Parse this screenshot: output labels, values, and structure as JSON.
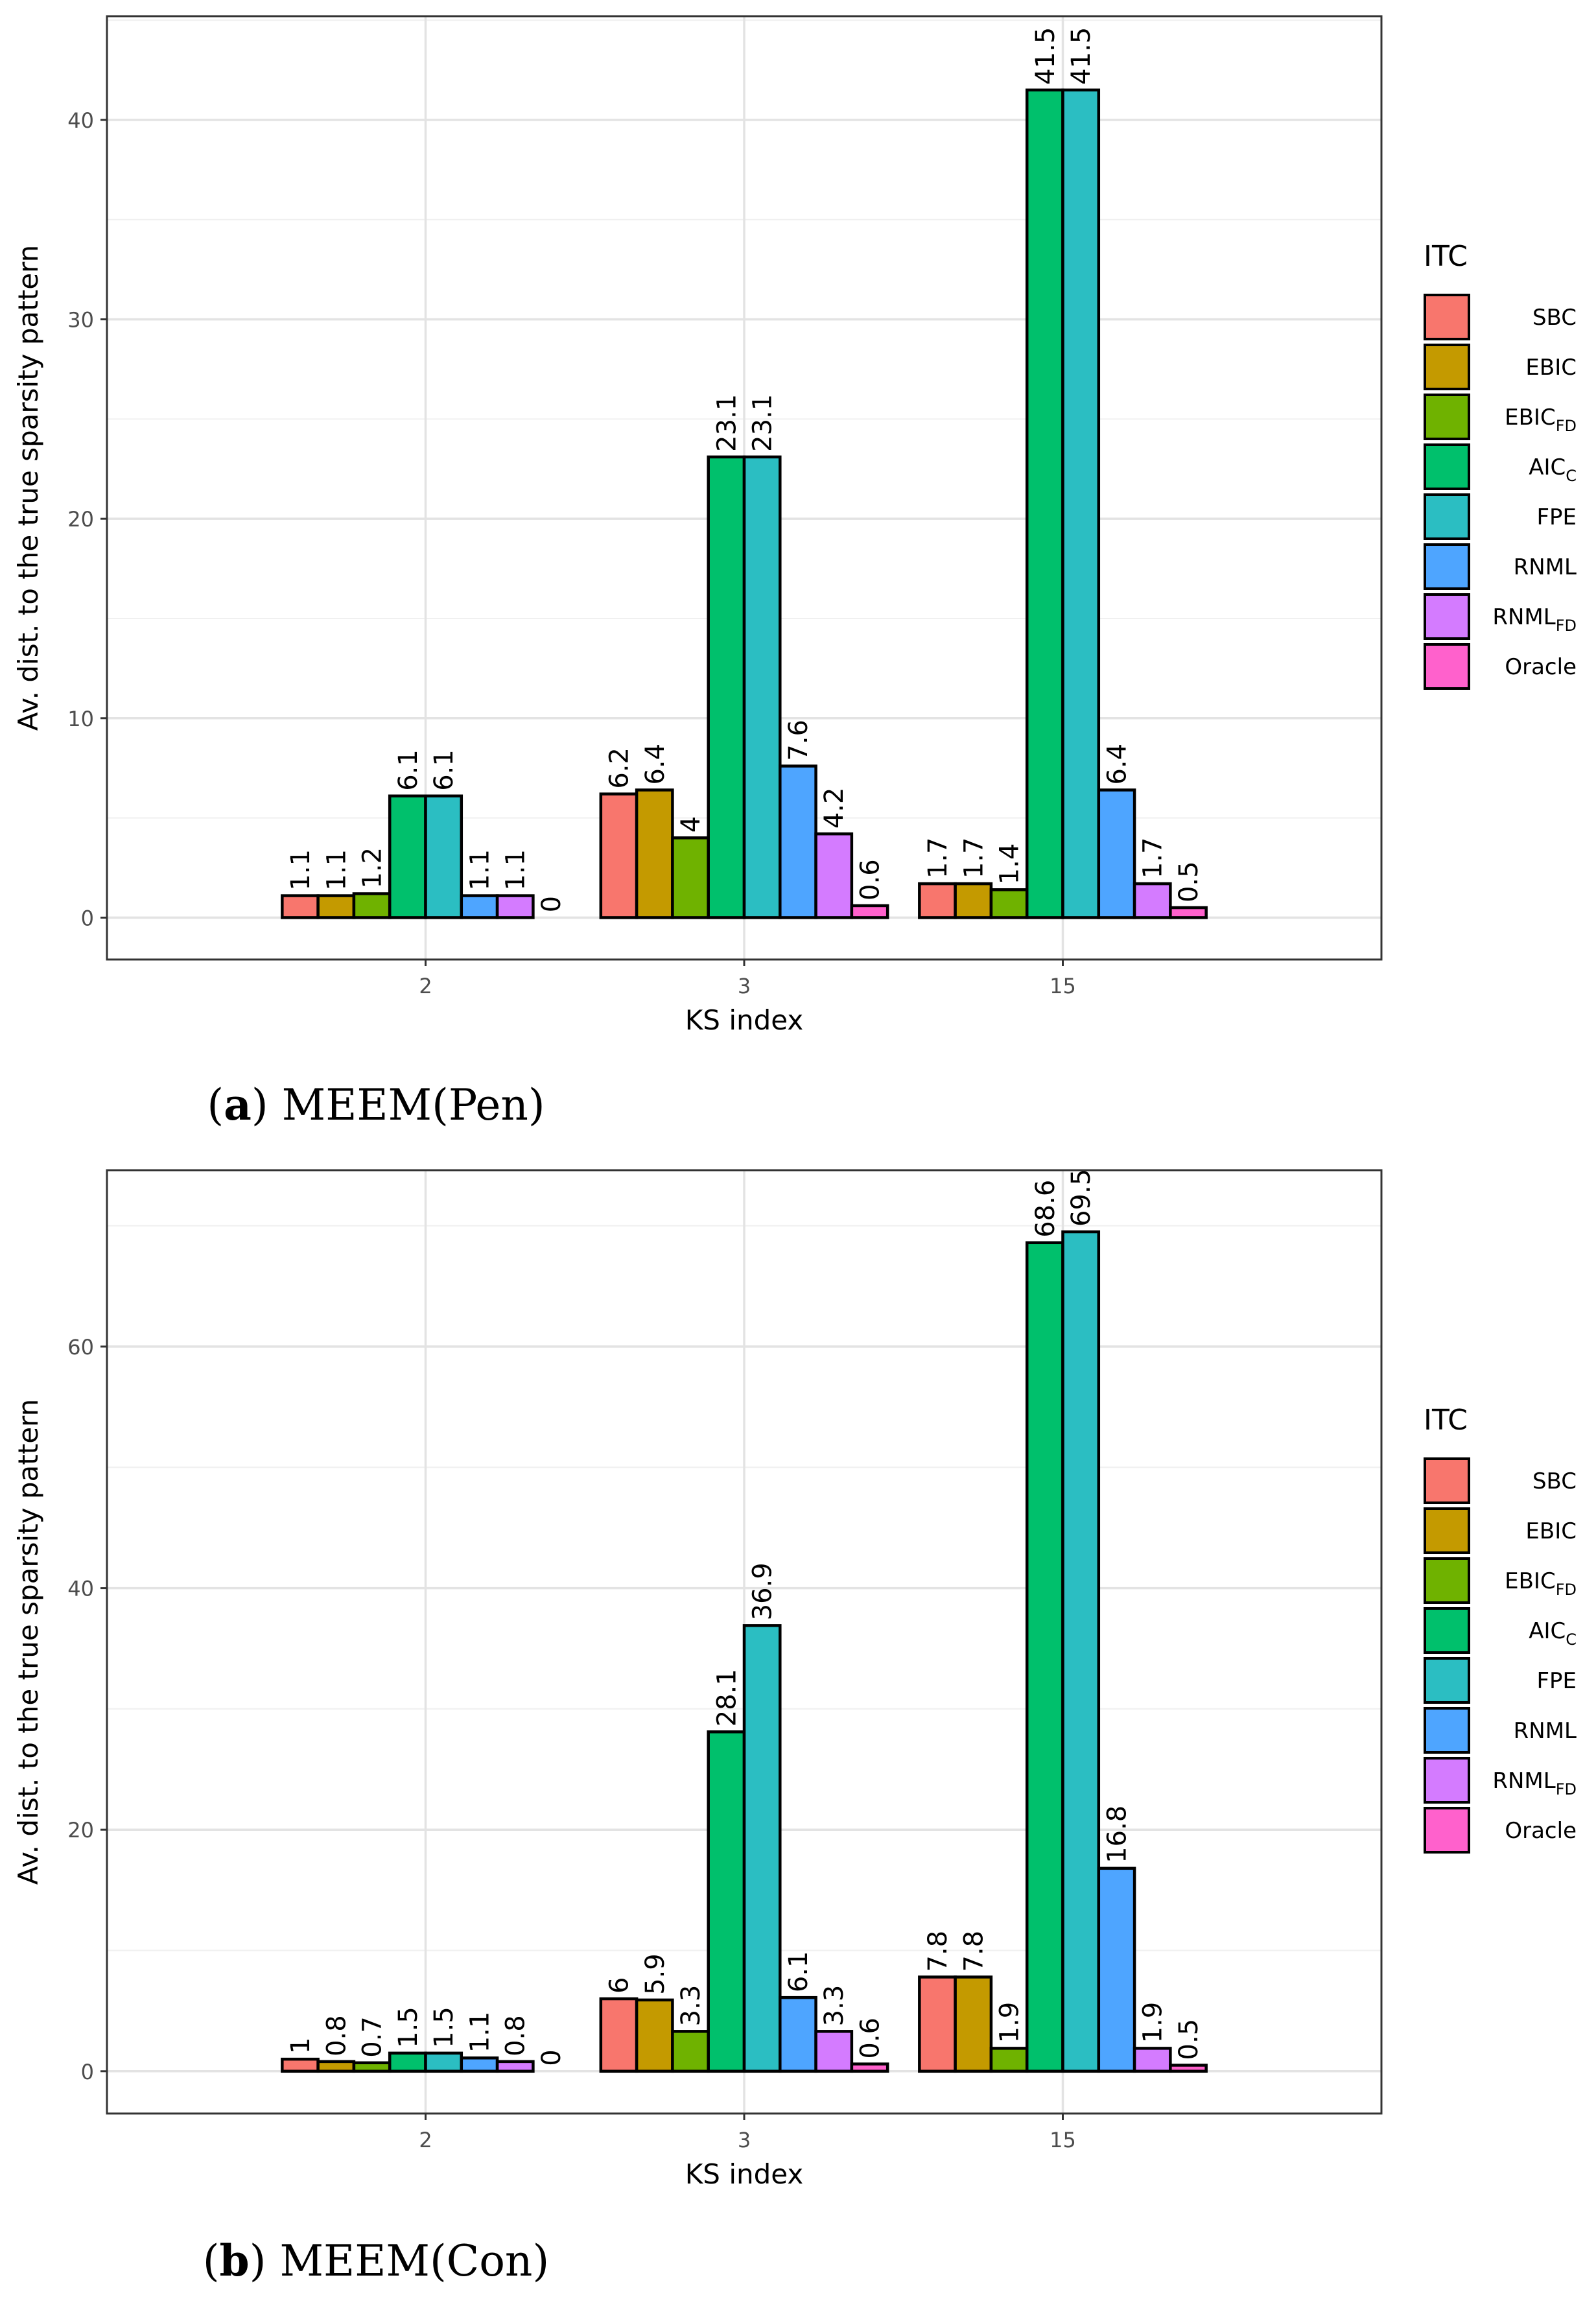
{
  "colors": {
    "SBC": "#F8766D",
    "EBIC": "#C49A00",
    "EBIC_FD": "#6FB200",
    "AIC_C": "#00C06C",
    "FPE": "#2BBEC2",
    "RNML": "#4EA5FF",
    "RNML_FD": "#D47BFF",
    "Oracle": "#FF61CC"
  },
  "legend": {
    "title": "ITC",
    "entries": [
      {
        "key": "SBC",
        "label": "SBC",
        "sub": ""
      },
      {
        "key": "EBIC",
        "label": "EBIC",
        "sub": ""
      },
      {
        "key": "EBIC_FD",
        "label": "EBIC",
        "sub": "FD"
      },
      {
        "key": "AIC_C",
        "label": "AIC",
        "sub": "C"
      },
      {
        "key": "FPE",
        "label": "FPE",
        "sub": ""
      },
      {
        "key": "RNML",
        "label": "RNML",
        "sub": ""
      },
      {
        "key": "RNML_FD",
        "label": "RNML",
        "sub": "FD"
      },
      {
        "key": "Oracle",
        "label": "Oracle",
        "sub": ""
      }
    ]
  },
  "chart_data": [
    {
      "type": "bar",
      "caption_letter": "a",
      "caption_text": "MEEM(Pen)",
      "xlabel": "KS index",
      "ylabel": "Av. dist. to the true sparsity pattern",
      "categories": [
        "2",
        "3",
        "15"
      ],
      "ylim": [
        -2.1,
        45.2
      ],
      "yticks": [
        0,
        10,
        20,
        30,
        40
      ],
      "grid": true,
      "legend_position": "right",
      "series": [
        {
          "key": "SBC",
          "values": [
            1.1,
            6.2,
            1.7
          ],
          "labels": [
            "1.1",
            "6.2",
            "1.7"
          ]
        },
        {
          "key": "EBIC",
          "values": [
            1.1,
            6.4,
            1.7
          ],
          "labels": [
            "1.1",
            "6.4",
            "1.7"
          ]
        },
        {
          "key": "EBIC_FD",
          "values": [
            1.2,
            4,
            1.4
          ],
          "labels": [
            "1.2",
            "4",
            "1.4"
          ]
        },
        {
          "key": "AIC_C",
          "values": [
            6.1,
            23.1,
            41.5
          ],
          "labels": [
            "6.1",
            "23.1",
            "41.5"
          ]
        },
        {
          "key": "FPE",
          "values": [
            6.1,
            23.1,
            41.5
          ],
          "labels": [
            "6.1",
            "23.1",
            "41.5"
          ]
        },
        {
          "key": "RNML",
          "values": [
            1.1,
            7.6,
            6.4
          ],
          "labels": [
            "1.1",
            "7.6",
            "6.4"
          ]
        },
        {
          "key": "RNML_FD",
          "values": [
            1.1,
            4.2,
            1.7
          ],
          "labels": [
            "1.1",
            "4.2",
            "1.7"
          ]
        },
        {
          "key": "Oracle",
          "values": [
            0,
            0.6,
            0.5
          ],
          "labels": [
            "0",
            "0.6",
            "0.5"
          ]
        }
      ]
    },
    {
      "type": "bar",
      "caption_letter": "b",
      "caption_text": "MEEM(Con)",
      "xlabel": "KS index",
      "ylabel": "Av. dist. to the true sparsity pattern",
      "categories": [
        "2",
        "3",
        "15"
      ],
      "ylim": [
        -3.5,
        74.6
      ],
      "yticks": [
        0,
        20,
        40,
        60
      ],
      "grid": true,
      "legend_position": "right",
      "series": [
        {
          "key": "SBC",
          "values": [
            1,
            6,
            7.8
          ],
          "labels": [
            "1",
            "6",
            "7.8"
          ]
        },
        {
          "key": "EBIC",
          "values": [
            0.8,
            5.9,
            7.8
          ],
          "labels": [
            "0.8",
            "5.9",
            "7.8"
          ]
        },
        {
          "key": "EBIC_FD",
          "values": [
            0.7,
            3.3,
            1.9
          ],
          "labels": [
            "0.7",
            "3.3",
            "1.9"
          ]
        },
        {
          "key": "AIC_C",
          "values": [
            1.5,
            28.1,
            68.6
          ],
          "labels": [
            "1.5",
            "28.1",
            "68.6"
          ]
        },
        {
          "key": "FPE",
          "values": [
            1.5,
            36.9,
            69.5
          ],
          "labels": [
            "1.5",
            "36.9",
            "69.5"
          ]
        },
        {
          "key": "RNML",
          "values": [
            1.1,
            6.1,
            16.8
          ],
          "labels": [
            "1.1",
            "6.1",
            "16.8"
          ]
        },
        {
          "key": "RNML_FD",
          "values": [
            0.8,
            3.3,
            1.9
          ],
          "labels": [
            "0.8",
            "3.3",
            "1.9"
          ]
        },
        {
          "key": "Oracle",
          "values": [
            0,
            0.6,
            0.5
          ],
          "labels": [
            "0",
            "0.6",
            "0.5"
          ]
        }
      ]
    }
  ]
}
